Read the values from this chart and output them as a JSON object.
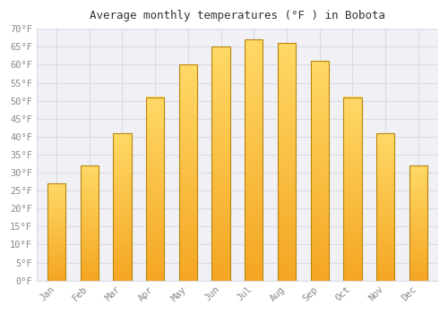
{
  "title": "Average monthly temperatures (°F ) in Bobota",
  "months": [
    "Jan",
    "Feb",
    "Mar",
    "Apr",
    "May",
    "Jun",
    "Jul",
    "Aug",
    "Sep",
    "Oct",
    "Nov",
    "Dec"
  ],
  "values": [
    27,
    32,
    41,
    51,
    60,
    65,
    67,
    66,
    61,
    51,
    41,
    32
  ],
  "bar_color_bottom": "#F5A623",
  "bar_color_top": "#FFD966",
  "bar_edge_color": "#B8860B",
  "plot_bg_color": "#F0F0F5",
  "background_color": "#FFFFFF",
  "grid_color": "#DCDCE8",
  "tick_label_color": "#888888",
  "title_color": "#333333",
  "ylim": [
    0,
    70
  ],
  "ytick_step": 5,
  "font_family": "monospace"
}
